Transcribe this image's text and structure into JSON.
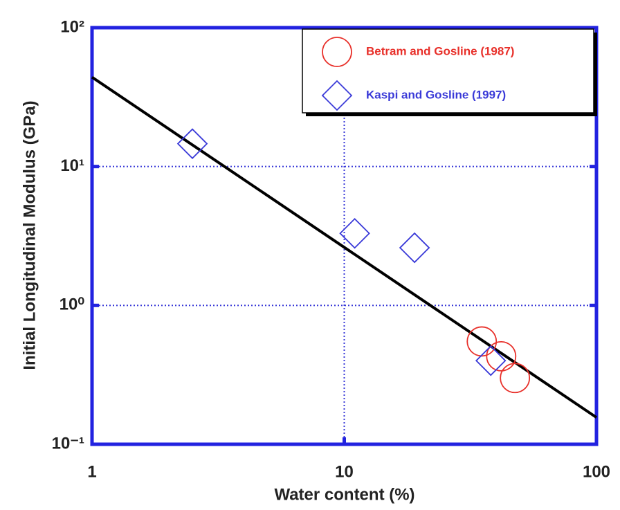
{
  "chart_data": {
    "type": "scatter",
    "xlabel": "Water  content (%)",
    "ylabel": "Initial Longitudinal Modulus (GPa)",
    "xlog": true,
    "ylog": true,
    "xlim": [
      1,
      100
    ],
    "ylim": [
      0.1,
      100
    ],
    "xticks": [
      1,
      10,
      100
    ],
    "yticks": [
      {
        "value": 0.1,
        "label": "10⁻¹"
      },
      {
        "value": 1,
        "label": "10⁰"
      },
      {
        "value": 10,
        "label": "10¹"
      },
      {
        "value": 100,
        "label": "10²"
      }
    ],
    "grid": true,
    "grid_color": "#3a3ad8",
    "frame_color": "#2222e0",
    "legend": "upper right",
    "series": [
      {
        "name": "Betram and Gosline (1987)",
        "color": "#e8302a",
        "marker": "circle",
        "x": [
          35.1,
          41.9,
          47.5
        ],
        "values": [
          0.55,
          0.43,
          0.3
        ]
      },
      {
        "name": "Kaspi and Gosline (1997)",
        "color": "#3a3ad8",
        "marker": "diamond",
        "x": [
          2.5,
          11.0,
          19.0,
          38.1
        ],
        "values": [
          14.6,
          3.3,
          2.6,
          0.4
        ]
      }
    ],
    "fit": {
      "color": "#000000",
      "x": [
        1,
        100
      ],
      "values": [
        44,
        0.156
      ]
    }
  }
}
